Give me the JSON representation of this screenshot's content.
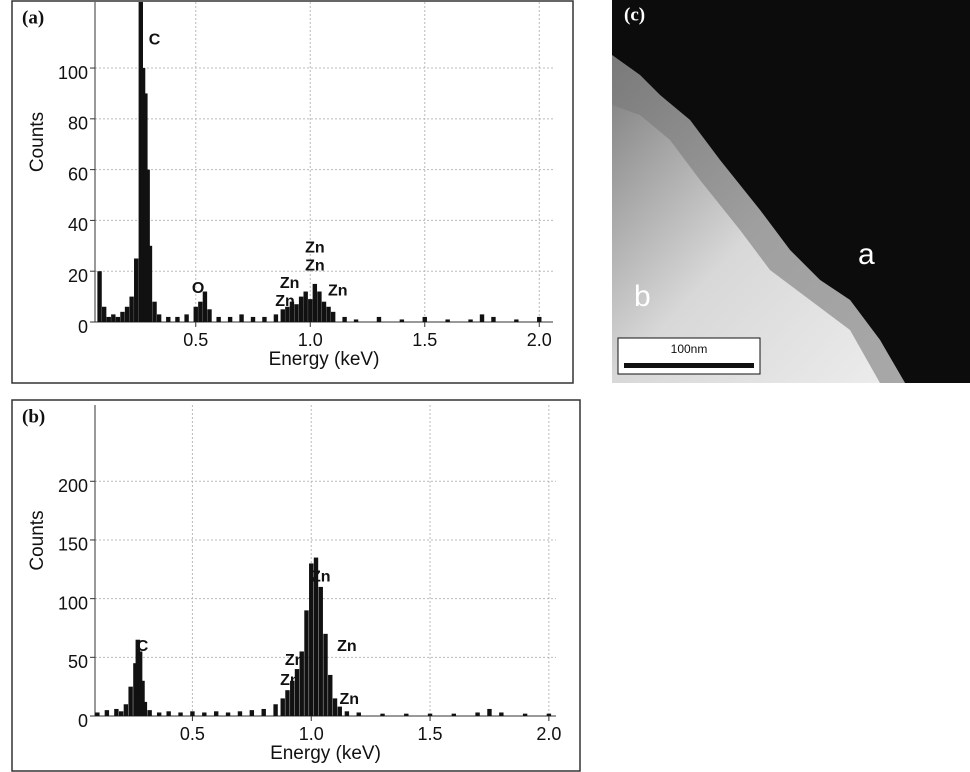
{
  "chart_data": [
    {
      "type": "bar",
      "title": "(a)",
      "x_label": "Energy (keV)",
      "y_label": "Counts",
      "x": [
        0.08,
        0.1,
        0.12,
        0.14,
        0.16,
        0.18,
        0.2,
        0.22,
        0.24,
        0.26,
        0.27,
        0.28,
        0.29,
        0.3,
        0.32,
        0.34,
        0.38,
        0.42,
        0.46,
        0.5,
        0.52,
        0.54,
        0.56,
        0.6,
        0.65,
        0.7,
        0.75,
        0.8,
        0.85,
        0.88,
        0.9,
        0.92,
        0.94,
        0.96,
        0.98,
        1.0,
        1.02,
        1.04,
        1.06,
        1.08,
        1.1,
        1.15,
        1.2,
        1.3,
        1.4,
        1.5,
        1.6,
        1.7,
        1.75,
        1.8,
        1.9,
        2.0
      ],
      "values": [
        20,
        6,
        2,
        3,
        2,
        4,
        6,
        10,
        25,
        126,
        100,
        90,
        60,
        30,
        8,
        3,
        2,
        2,
        3,
        6,
        8,
        12,
        5,
        2,
        2,
        3,
        2,
        2,
        3,
        5,
        6,
        8,
        7,
        10,
        12,
        9,
        15,
        12,
        8,
        6,
        4,
        2,
        1,
        2,
        1,
        2,
        1,
        1,
        3,
        2,
        1,
        2
      ],
      "color": "#111111",
      "xlim": [
        0.06,
        2.06
      ],
      "xticks": [
        0.5,
        {
          "value": 1,
          "label": "1.0"
        },
        1.5,
        {
          "value": 2,
          "label": "2.0"
        }
      ],
      "ylim": [
        0,
        126
      ],
      "yticks": [
        0,
        20,
        40,
        60,
        80,
        100
      ],
      "grid": true,
      "annotations": [
        {
          "text": "C",
          "x": 0.32,
          "y": 111
        },
        {
          "text": "O",
          "x": 0.51,
          "y": 13
        },
        {
          "text": "Zn",
          "x": 0.89,
          "y": 8
        },
        {
          "text": "Zn",
          "x": 0.91,
          "y": 15
        },
        {
          "text": "Zn",
          "x": 1.02,
          "y": 22
        },
        {
          "text": "Zn",
          "x": 1.02,
          "y": 29
        },
        {
          "text": "Zn",
          "x": 1.12,
          "y": 12
        }
      ]
    },
    {
      "type": "bar",
      "title": "(b)",
      "x_label": "Energy (keV)",
      "y_label": "Counts",
      "x": [
        0.1,
        0.14,
        0.18,
        0.2,
        0.22,
        0.24,
        0.26,
        0.27,
        0.28,
        0.29,
        0.3,
        0.32,
        0.36,
        0.4,
        0.45,
        0.5,
        0.55,
        0.6,
        0.65,
        0.7,
        0.75,
        0.8,
        0.85,
        0.88,
        0.9,
        0.92,
        0.94,
        0.96,
        0.98,
        1.0,
        1.02,
        1.04,
        1.06,
        1.08,
        1.1,
        1.12,
        1.15,
        1.2,
        1.3,
        1.4,
        1.5,
        1.6,
        1.7,
        1.75,
        1.8,
        1.9,
        2.0
      ],
      "values": [
        3,
        5,
        6,
        4,
        10,
        25,
        45,
        65,
        55,
        30,
        12,
        5,
        3,
        4,
        3,
        4,
        3,
        4,
        3,
        4,
        5,
        6,
        10,
        15,
        22,
        30,
        40,
        55,
        90,
        130,
        135,
        110,
        70,
        35,
        15,
        8,
        4,
        3,
        2,
        2,
        2,
        2,
        3,
        6,
        3,
        2,
        2
      ],
      "color": "#111111",
      "xlim": [
        0.09,
        2.03
      ],
      "xticks": [
        0.5,
        {
          "value": 1,
          "label": "1.0"
        },
        1.5,
        {
          "value": 2,
          "label": "2.0"
        }
      ],
      "ylim": [
        0,
        265
      ],
      "yticks": [
        0,
        50,
        100,
        150,
        200
      ],
      "grid": true,
      "annotations": [
        {
          "text": "C",
          "x": 0.29,
          "y": 59
        },
        {
          "text": "Zn",
          "x": 1.04,
          "y": 118
        },
        {
          "text": "Zn",
          "x": 1.15,
          "y": 59
        },
        {
          "text": "Zn",
          "x": 0.93,
          "y": 47
        },
        {
          "text": "Zn",
          "x": 0.91,
          "y": 30
        },
        {
          "text": "Zn",
          "x": 1.16,
          "y": 14
        }
      ]
    }
  ],
  "panel_c": {
    "label": "(c)",
    "region_a": "a",
    "region_b": "b",
    "scale_bar": "100nm"
  }
}
